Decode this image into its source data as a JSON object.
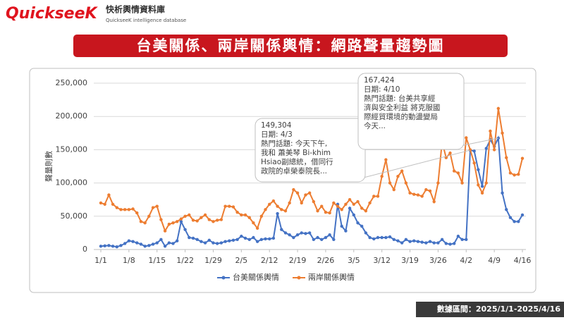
{
  "brand": {
    "logo": "QuickseeK",
    "name": "快析輿情資料庫",
    "tagline": "QuickseeK intelligence database"
  },
  "footer": "數據區間：2025/1/1-2025/4/16",
  "chart_data": {
    "type": "line",
    "title": "台美關係、兩岸關係輿情：網路聲量趨勢圖",
    "ylabel": "聲量則數",
    "categories": [
      "1/1",
      null,
      null,
      null,
      null,
      null,
      null,
      "1/8",
      null,
      null,
      null,
      null,
      null,
      null,
      "1/15",
      null,
      null,
      null,
      null,
      null,
      null,
      "1/22",
      null,
      null,
      null,
      null,
      null,
      null,
      "1/29",
      null,
      null,
      null,
      null,
      null,
      null,
      "2/5",
      null,
      null,
      null,
      null,
      null,
      null,
      "2/12",
      null,
      null,
      null,
      null,
      null,
      null,
      "2/19",
      null,
      null,
      null,
      null,
      null,
      null,
      "2/26",
      null,
      null,
      null,
      null,
      null,
      null,
      "3/5",
      null,
      null,
      null,
      null,
      null,
      null,
      "3/12",
      null,
      null,
      null,
      null,
      null,
      null,
      "3/19",
      null,
      null,
      null,
      null,
      null,
      null,
      "3/26",
      null,
      null,
      null,
      null,
      null,
      null,
      "4/2",
      null,
      null,
      null,
      null,
      null,
      null,
      "4/9",
      null,
      null,
      null,
      null,
      null,
      null,
      "4/16"
    ],
    "series": [
      {
        "name": "台美關係輿情",
        "color": "#4472c4",
        "values": [
          5000,
          5500,
          6000,
          5000,
          4000,
          6000,
          9000,
          13000,
          12000,
          10000,
          8000,
          5000,
          6000,
          8000,
          10000,
          15000,
          5000,
          10000,
          9000,
          13000,
          42000,
          30000,
          18000,
          17000,
          15000,
          12000,
          10000,
          14000,
          10000,
          9000,
          10000,
          12000,
          13000,
          14000,
          15000,
          20000,
          17000,
          15000,
          18000,
          12000,
          15000,
          16000,
          16000,
          17000,
          54000,
          30000,
          25000,
          22000,
          18000,
          22000,
          25000,
          24000,
          25000,
          15000,
          18000,
          15000,
          18000,
          22000,
          15000,
          68000,
          35000,
          28000,
          62000,
          52000,
          40000,
          35000,
          25000,
          18000,
          16000,
          18000,
          18000,
          18000,
          19000,
          15000,
          13000,
          10000,
          15000,
          12000,
          13000,
          12000,
          11000,
          10000,
          12000,
          10000,
          10000,
          15000,
          9000,
          8000,
          9000,
          20000,
          15000,
          15000,
          149304,
          148000,
          120000,
          95000,
          152000,
          165000,
          155000,
          167424,
          85000,
          60000,
          48000,
          42000,
          42000,
          52000
        ]
      },
      {
        "name": "兩岸關係輿情",
        "color": "#ed7d31",
        "values": [
          70000,
          68000,
          82000,
          68000,
          63000,
          60000,
          60000,
          60000,
          61000,
          55000,
          42000,
          40000,
          50000,
          63000,
          65000,
          45000,
          28000,
          38000,
          40000,
          42000,
          46000,
          50000,
          52000,
          44000,
          43000,
          48000,
          52000,
          45000,
          42000,
          44000,
          45000,
          65000,
          65000,
          64000,
          56000,
          52000,
          52000,
          48000,
          40000,
          32000,
          50000,
          60000,
          68000,
          73000,
          65000,
          60000,
          58000,
          70000,
          90000,
          85000,
          70000,
          82000,
          85000,
          72000,
          58000,
          65000,
          56000,
          55000,
          70000,
          65000,
          60000,
          68000,
          75000,
          68000,
          72000,
          62000,
          58000,
          70000,
          80000,
          80000,
          110000,
          135000,
          100000,
          90000,
          110000,
          118000,
          100000,
          85000,
          83000,
          82000,
          80000,
          90000,
          88000,
          72000,
          100000,
          162000,
          138000,
          145000,
          118000,
          115000,
          100000,
          168000,
          150000,
          130000,
          97000,
          85000,
          100000,
          178000,
          150000,
          212000,
          175000,
          138000,
          115000,
          112000,
          113000,
          137000
        ]
      }
    ],
    "ylim": [
      0,
      250000
    ],
    "yticks": [
      0,
      {
        "value": 50000,
        "label": "50,000"
      },
      {
        "value": 100000,
        "label": "100,000"
      },
      {
        "value": 150000,
        "label": "150,000"
      },
      {
        "value": 200000,
        "label": "200,000"
      },
      {
        "value": 250000,
        "label": "250,000"
      }
    ],
    "grid": true,
    "legend": "bottom",
    "annotations": [
      {
        "lines": [
          "149,304",
          "日期: 4/3",
          "熱門話題: 今天下午,",
          "我和 蕭美琴 Bi-khim",
          "Hsiao副總統，借同行",
          "政院的卓榮泰院長..."
        ]
      },
      {
        "lines": [
          "167,424",
          "日期: 4/10",
          "熱門話題: 台美共享經",
          "濟與安全利益 將克服國",
          "際經貿環境的動盪變局",
          "今天..."
        ]
      }
    ]
  }
}
